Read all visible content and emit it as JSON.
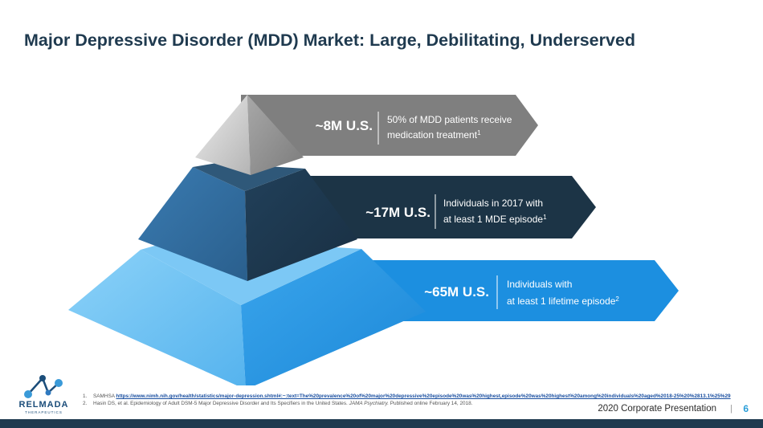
{
  "slide": {
    "title": "Major Depressive Disorder (MDD) Market: Large, Debilitating, Underserved"
  },
  "tiers": [
    {
      "value": "~8M U.S.",
      "description_line1": "50% of MDD patients receive",
      "description_line2": "medication treatment",
      "footnote": "1",
      "banner_color": "#7f7f7f"
    },
    {
      "value": "~17M U.S.",
      "description_line1": "Individuals in 2017 with",
      "description_line2": "at least 1 MDE episode",
      "footnote": "1",
      "banner_color": "#1c3446"
    },
    {
      "value": "~65M U.S.",
      "description_line1": "Individuals with",
      "description_line2": "at least 1 lifetime episode",
      "footnote": "2",
      "banner_color": "#1c8fe0"
    }
  ],
  "references": [
    {
      "num": "1.",
      "prefix": "SAMHSA",
      "link": "https://www.nimh.nih.gov/health/statistics/major-depression.shtml#:~:text=The%20prevalence%20of%20major%20depressive%20episode%20was%20highest,episode%20was%20highest%20among%20individuals%20aged%2018-25%20%2813.1%25%29"
    },
    {
      "num": "2.",
      "text": "Hasin DS, et al. Epidemiology of Adult DSM-5 Major Depressive Disorder and Its Specifiers in the United States.",
      "journal": "JAMA Psychiatry.",
      "suffix": "Published online February 14, 2018."
    }
  ],
  "logo": {
    "text": "RELMADA",
    "subtext": "THERAPEUTICS"
  },
  "footer": {
    "label": "2020 Corporate Presentation",
    "separator": "|",
    "page_number": "6"
  },
  "colors": {
    "title": "#1f3a4f",
    "accent": "#2a9ed8",
    "navy": "#1c3446"
  }
}
